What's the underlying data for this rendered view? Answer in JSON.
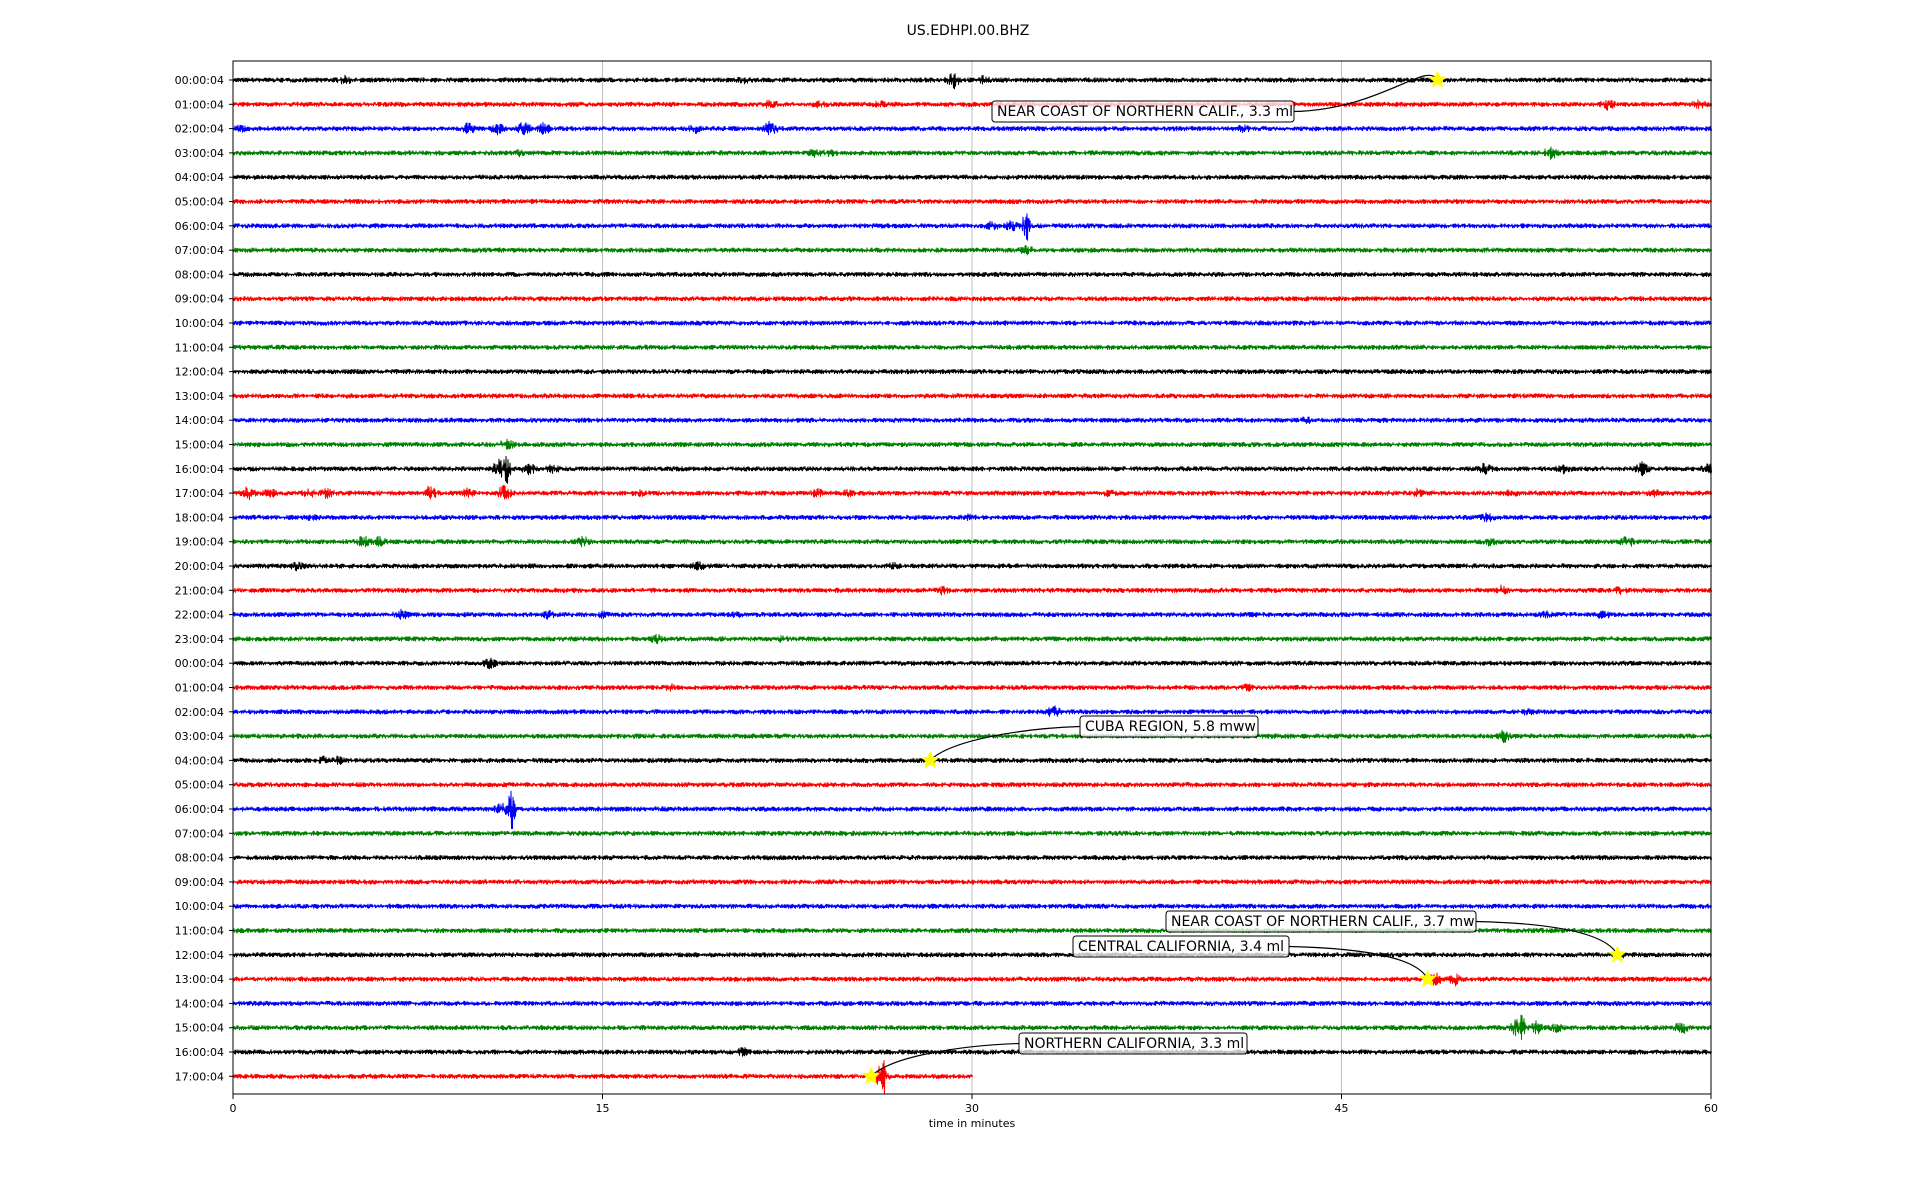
{
  "chart_data": {
    "type": "line",
    "title": "US.EDHPI.00.BHZ",
    "xlabel": "time in minutes",
    "ylabel": "",
    "xlim": [
      0,
      60
    ],
    "xticks": [
      0,
      15,
      30,
      45,
      60
    ],
    "grid": "vertical lines at x ticks",
    "trace_colors": [
      "#000000",
      "#ff0000",
      "#0000ff",
      "#008000"
    ],
    "rows": [
      {
        "label": "00:00:04",
        "bursts": [
          [
            4.5,
            3
          ],
          [
            20.7,
            2
          ],
          [
            29.2,
            9
          ],
          [
            30.5,
            3
          ]
        ]
      },
      {
        "label": "01:00:04",
        "bursts": [
          [
            21.8,
            3
          ],
          [
            23.8,
            2
          ],
          [
            26.3,
            2
          ],
          [
            55.8,
            4
          ],
          [
            59.5,
            3
          ]
        ]
      },
      {
        "label": "02:00:04",
        "bursts": [
          [
            0.2,
            3
          ],
          [
            9.5,
            5
          ],
          [
            10.7,
            5
          ],
          [
            11.8,
            6
          ],
          [
            12.6,
            5
          ],
          [
            18.8,
            3
          ],
          [
            21.8,
            7
          ],
          [
            41.0,
            2
          ]
        ]
      },
      {
        "label": "03:00:04",
        "bursts": [
          [
            11.6,
            2
          ],
          [
            23.6,
            3
          ],
          [
            24.2,
            2
          ],
          [
            53.5,
            5
          ]
        ]
      },
      {
        "label": "04:00:04",
        "bursts": []
      },
      {
        "label": "05:00:04",
        "bursts": []
      },
      {
        "label": "06:00:04",
        "bursts": [
          [
            30.8,
            3
          ],
          [
            31.6,
            4
          ],
          [
            32.2,
            20
          ]
        ]
      },
      {
        "label": "07:00:04",
        "bursts": [
          [
            32.2,
            3
          ]
        ]
      },
      {
        "label": "08:00:04",
        "bursts": []
      },
      {
        "label": "09:00:04",
        "bursts": []
      },
      {
        "label": "10:00:04",
        "bursts": []
      },
      {
        "label": "11:00:04",
        "bursts": []
      },
      {
        "label": "12:00:04",
        "bursts": []
      },
      {
        "label": "13:00:04",
        "bursts": []
      },
      {
        "label": "14:00:04",
        "bursts": [
          [
            43.6,
            2
          ]
        ]
      },
      {
        "label": "15:00:04",
        "bursts": [
          [
            11.1,
            4
          ]
        ]
      },
      {
        "label": "16:00:04",
        "bursts": [
          [
            10.8,
            8
          ],
          [
            11.1,
            18
          ],
          [
            12.0,
            5
          ],
          [
            13.0,
            3
          ],
          [
            50.8,
            4
          ],
          [
            54.0,
            3
          ],
          [
            57.2,
            5
          ],
          [
            59.9,
            4
          ]
        ]
      },
      {
        "label": "17:00:04",
        "bursts": [
          [
            0.6,
            5
          ],
          [
            1.5,
            3
          ],
          [
            3.1,
            3
          ],
          [
            3.8,
            4
          ],
          [
            8.0,
            6
          ],
          [
            9.5,
            3
          ],
          [
            11.0,
            7
          ],
          [
            16.5,
            2
          ],
          [
            23.7,
            3
          ],
          [
            25.0,
            2
          ],
          [
            35.5,
            2
          ],
          [
            48.1,
            3
          ],
          [
            51.9,
            2
          ],
          [
            57.7,
            2
          ]
        ]
      },
      {
        "label": "18:00:04",
        "bursts": [
          [
            3.2,
            2
          ],
          [
            29.8,
            2
          ],
          [
            50.9,
            3
          ]
        ]
      },
      {
        "label": "19:00:04",
        "bursts": [
          [
            5.3,
            5
          ],
          [
            5.9,
            4
          ],
          [
            14.2,
            4
          ],
          [
            51.0,
            3
          ],
          [
            56.6,
            4
          ]
        ]
      },
      {
        "label": "20:00:04",
        "bursts": [
          [
            2.6,
            3
          ],
          [
            18.9,
            3
          ],
          [
            26.8,
            2
          ]
        ]
      },
      {
        "label": "21:00:04",
        "bursts": [
          [
            28.8,
            3
          ],
          [
            51.5,
            4
          ],
          [
            56.3,
            2
          ]
        ]
      },
      {
        "label": "22:00:04",
        "bursts": [
          [
            6.8,
            4
          ],
          [
            12.8,
            3
          ],
          [
            15.0,
            2
          ],
          [
            20.5,
            2
          ],
          [
            53.3,
            2
          ],
          [
            55.6,
            3
          ]
        ]
      },
      {
        "label": "23:00:04",
        "bursts": [
          [
            17.2,
            3
          ],
          [
            22.3,
            2
          ]
        ]
      },
      {
        "label": "00:00:04",
        "bursts": [
          [
            10.4,
            4
          ]
        ]
      },
      {
        "label": "01:00:04",
        "bursts": [
          [
            17.8,
            2
          ],
          [
            41.2,
            2
          ]
        ]
      },
      {
        "label": "02:00:04",
        "bursts": [
          [
            33.3,
            5
          ],
          [
            52.5,
            2
          ]
        ]
      },
      {
        "label": "03:00:04",
        "bursts": [
          [
            51.6,
            5
          ]
        ]
      },
      {
        "label": "04:00:04",
        "bursts": [
          [
            3.6,
            3
          ],
          [
            4.3,
            3
          ]
        ]
      },
      {
        "label": "05:00:04",
        "bursts": []
      },
      {
        "label": "06:00:04",
        "bursts": [
          [
            10.9,
            6
          ],
          [
            11.3,
            22
          ]
        ]
      },
      {
        "label": "07:00:04",
        "bursts": []
      },
      {
        "label": "08:00:04",
        "bursts": []
      },
      {
        "label": "09:00:04",
        "bursts": []
      },
      {
        "label": "10:00:04",
        "bursts": []
      },
      {
        "label": "11:00:04",
        "bursts": []
      },
      {
        "label": "12:00:04",
        "bursts": [
          [
            56.2,
            3
          ]
        ]
      },
      {
        "label": "13:00:04",
        "bursts": [
          [
            48.8,
            5
          ],
          [
            49.6,
            5
          ]
        ]
      },
      {
        "label": "14:00:04",
        "bursts": []
      },
      {
        "label": "15:00:04",
        "bursts": [
          [
            52.1,
            8
          ],
          [
            52.3,
            16
          ],
          [
            52.9,
            5
          ],
          [
            53.7,
            3
          ],
          [
            58.8,
            5
          ]
        ]
      },
      {
        "label": "16:00:04",
        "bursts": [
          [
            20.7,
            3
          ]
        ]
      },
      {
        "label": "17:00:04",
        "bursts": [
          [
            26.3,
            10
          ],
          [
            26.4,
            18
          ]
        ],
        "end": 30.0
      }
    ],
    "annotations": [
      {
        "text": "NEAR COAST OF NORTHERN CALIF., 3.3 ml",
        "row": 0,
        "x": 48.9
      },
      {
        "text": "CUBA REGION, 5.8 mww",
        "row": 28,
        "x": 28.3
      },
      {
        "text": "NEAR COAST OF NORTHERN CALIF., 3.7 mw",
        "row": 36,
        "x": 56.2
      },
      {
        "text": "CENTRAL CALIFORNIA, 3.4 ml",
        "row": 37,
        "x": 48.5
      },
      {
        "text": "NORTHERN CALIFORNIA, 3.3 ml",
        "row": 41,
        "x": 25.9
      }
    ]
  }
}
